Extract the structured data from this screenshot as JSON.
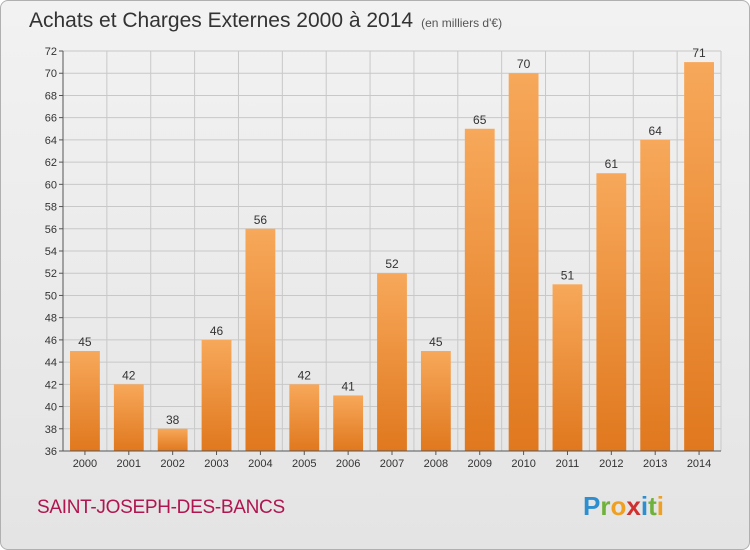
{
  "header": {
    "title": "Achats et Charges Externes 2000 à 2014",
    "subtitle": "(en milliers d'€)"
  },
  "footer": {
    "commune": "SAINT-JOSEPH-DES-BANCS",
    "logo": "Proxiti"
  },
  "colors": {
    "bar_light": "#f7a85a",
    "bar_dark": "#e0781e",
    "grid": "#c8c8c8",
    "commune_text": "#b0154f"
  },
  "chart_data": {
    "type": "bar",
    "title": "Achats et Charges Externes 2000 à 2014",
    "subtitle": "(en milliers d'€)",
    "xlabel": "",
    "ylabel": "",
    "categories": [
      "2000",
      "2001",
      "2002",
      "2003",
      "2004",
      "2005",
      "2006",
      "2007",
      "2008",
      "2009",
      "2010",
      "2011",
      "2012",
      "2013",
      "2014"
    ],
    "values": [
      45,
      42,
      38,
      46,
      56,
      42,
      41,
      52,
      45,
      65,
      70,
      51,
      61,
      64,
      71
    ],
    "ylim": [
      36,
      72
    ],
    "yticks": [
      36,
      38,
      40,
      42,
      44,
      46,
      48,
      50,
      52,
      54,
      56,
      58,
      60,
      62,
      64,
      66,
      68,
      70,
      72
    ],
    "grid": true,
    "legend": "none"
  }
}
